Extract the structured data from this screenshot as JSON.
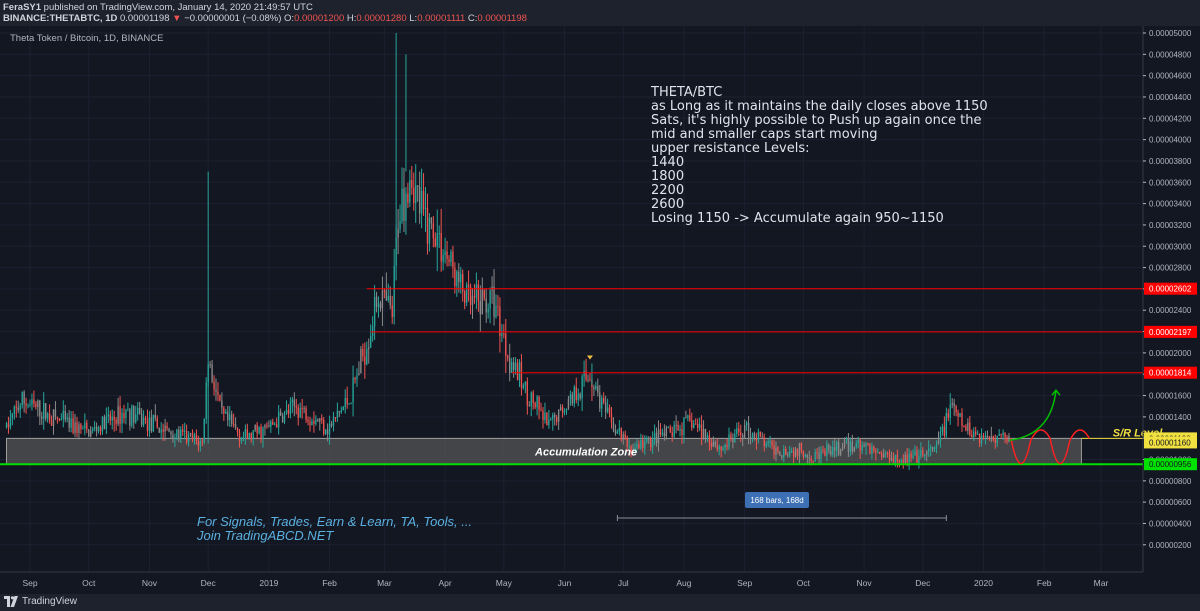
{
  "header": {
    "publisher_user": "FeraSY1",
    "publisher_text": " published on TradingView.com, January 14, 2020 21:49:57 UTC",
    "symbol_line": "BINANCE:THETABTC, 1D",
    "last_value": "0.00001198",
    "change": "−0.00000001 (−0.08%)",
    "o_label": "O:",
    "o_value": "0.00001200",
    "h_label": "H:",
    "h_value": "0.00001280",
    "l_label": "L:",
    "l_value": "0.00001111",
    "c_label": "C:",
    "c_value": "0.00001198"
  },
  "footer": {
    "brand": "TradingView"
  },
  "chart_data": {
    "type": "candlestick",
    "title": "Theta Token / Bitcoin, 1D, BINANCE",
    "y_axis_side": "right",
    "ylim": [
      2e-07,
      5e-05
    ],
    "y_ticks": [
      "0.00005000",
      "0.00004800",
      "0.00004600",
      "0.00004400",
      "0.00004200",
      "0.00004000",
      "0.00003800",
      "0.00003600",
      "0.00003400",
      "0.00003200",
      "0.00003000",
      "0.00002800",
      "0.00002600",
      "0.00002400",
      "0.00002200",
      "0.00002000",
      "0.00001800",
      "0.00001600",
      "0.00001400",
      "0.00001200",
      "0.00001000",
      "0.00000800",
      "0.00000600",
      "0.00000400",
      "0.00000200"
    ],
    "x_ticks": [
      {
        "label": "Sep",
        "date": "2018-09-01"
      },
      {
        "label": "Oct",
        "date": "2018-10-01"
      },
      {
        "label": "Nov",
        "date": "2018-11-01"
      },
      {
        "label": "Dec",
        "date": "2018-12-01"
      },
      {
        "label": "2019",
        "date": "2019-01-01"
      },
      {
        "label": "Feb",
        "date": "2019-02-01"
      },
      {
        "label": "Mar",
        "date": "2019-03-01"
      },
      {
        "label": "Apr",
        "date": "2019-04-01"
      },
      {
        "label": "May",
        "date": "2019-05-01"
      },
      {
        "label": "Jun",
        "date": "2019-06-01"
      },
      {
        "label": "Jul",
        "date": "2019-07-01"
      },
      {
        "label": "Aug",
        "date": "2019-08-01"
      },
      {
        "label": "Sep",
        "date": "2019-09-01"
      },
      {
        "label": "Oct",
        "date": "2019-10-01"
      },
      {
        "label": "Nov",
        "date": "2019-11-01"
      },
      {
        "label": "Dec",
        "date": "2019-12-01"
      },
      {
        "label": "2020",
        "date": "2020-01-01"
      },
      {
        "label": "Feb",
        "date": "2020-02-01"
      },
      {
        "label": "Mar",
        "date": "2020-03-01"
      }
    ],
    "price_path": [
      [
        "2018-08-20",
        1.3e-05
      ],
      [
        "2018-08-28",
        1.55e-05
      ],
      [
        "2018-09-12",
        1.4e-05
      ],
      [
        "2018-10-01",
        1.25e-05
      ],
      [
        "2018-10-20",
        1.45e-05
      ],
      [
        "2018-11-05",
        1.3e-05
      ],
      [
        "2018-11-28",
        1.15e-05
      ],
      [
        "2018-12-01",
        1.95e-05
      ],
      [
        "2018-12-08",
        1.4e-05
      ],
      [
        "2018-12-20",
        1.2e-05
      ],
      [
        "2019-01-01",
        1.3e-05
      ],
      [
        "2019-01-15",
        1.5e-05
      ],
      [
        "2019-02-01",
        1.3e-05
      ],
      [
        "2019-02-12",
        1.6e-05
      ],
      [
        "2019-02-20",
        2.1e-05
      ],
      [
        "2019-02-26",
        2.55e-05
      ],
      [
        "2019-03-05",
        2.35e-05
      ],
      [
        "2019-03-08",
        3.3e-05
      ],
      [
        "2019-03-14",
        3.7e-05
      ],
      [
        "2019-03-20",
        3.3e-05
      ],
      [
        "2019-03-28",
        3.1e-05
      ],
      [
        "2019-04-08",
        2.65e-05
      ],
      [
        "2019-04-14",
        2.45e-05
      ],
      [
        "2019-04-26",
        2.5e-05
      ],
      [
        "2019-05-03",
        2e-05
      ],
      [
        "2019-05-12",
        1.65e-05
      ],
      [
        "2019-05-24",
        1.3e-05
      ],
      [
        "2019-06-05",
        1.6e-05
      ],
      [
        "2019-06-14",
        1.8e-05
      ],
      [
        "2019-06-24",
        1.35e-05
      ],
      [
        "2019-07-05",
        1.1e-05
      ],
      [
        "2019-07-25",
        1.25e-05
      ],
      [
        "2019-08-05",
        1.35e-05
      ],
      [
        "2019-08-20",
        1.1e-05
      ],
      [
        "2019-09-01",
        1.3e-05
      ],
      [
        "2019-09-15",
        1.1e-05
      ],
      [
        "2019-10-10",
        1.05e-05
      ],
      [
        "2019-10-28",
        1.15e-05
      ],
      [
        "2019-11-10",
        1.05e-05
      ],
      [
        "2019-11-28",
        1e-05
      ],
      [
        "2019-12-08",
        1.1e-05
      ],
      [
        "2019-12-15",
        1.5e-05
      ],
      [
        "2019-12-22",
        1.3e-05
      ],
      [
        "2020-01-01",
        1.2e-05
      ],
      [
        "2020-01-09",
        1.25e-05
      ],
      [
        "2020-01-14",
        1.198e-05
      ]
    ],
    "wick_spikes": [
      {
        "date": "2018-12-01",
        "high": 3.7e-05,
        "low": 1.15e-05
      },
      {
        "date": "2019-03-07",
        "high": 5e-05,
        "low": 3e-05
      },
      {
        "date": "2019-03-12",
        "high": 4.8e-05,
        "low": 3.7e-05
      },
      {
        "date": "2019-06-15",
        "high": 1.9e-05,
        "low": 1.7e-05
      }
    ],
    "horizontal_levels": [
      {
        "value": 2.602e-05,
        "label": "0.00002602",
        "from": "2019-02-20"
      },
      {
        "value": 2.197e-05,
        "label": "0.00002197",
        "from": "2019-02-22"
      },
      {
        "value": 1.814e-05,
        "label": "0.00001814",
        "from": "2019-05-05"
      }
    ],
    "price_labels": [
      {
        "value": 1.198e-05,
        "label": "0.00001198"
      },
      {
        "value": 1.16e-05,
        "label": "0.00001160"
      },
      {
        "value": 9.56e-06,
        "label": "0.00000956"
      }
    ],
    "accumulation_zone": {
      "label": "Accumulation Zone",
      "top": 1.198e-05,
      "bottom": 9.56e-06,
      "from": "2018-08-20",
      "to": "2020-02-20"
    },
    "support_line": {
      "value": 9.56e-06
    },
    "sr_level": {
      "label": "S/R Level",
      "value": 1.198e-05
    },
    "measure": {
      "label": "168 bars, 168d",
      "from": "2019-06-28",
      "to": "2019-12-13"
    },
    "annotation_lines": [
      "THETA/BTC",
      "as Long as it maintains the daily closes above 1150",
      "Sats, it's highly possible to Push up again once the",
      "mid and smaller caps start moving",
      "",
      "upper resistance Levels:",
      "1440",
      "1800",
      "2200",
      "2600",
      "",
      "Losing 1150 -> Accumulate again 950~1150"
    ],
    "promo_lines": [
      "For Signals, Trades, Earn & Learn, TA, Tools, ...",
      "Join TradingABCD.NET"
    ],
    "colors": {
      "background": "#131722",
      "up": "#26a69a",
      "down": "#ef5350",
      "gray": "#8a8a8a",
      "resistance": "#ff0000",
      "support": "#00e000",
      "zone_fill": "#555555",
      "zone_border": "#9e9e9e",
      "sr_text": "#f0e040",
      "green_arrow": "#00c000",
      "red_path": "#ff2020",
      "promo": "#5ab0e0"
    }
  }
}
